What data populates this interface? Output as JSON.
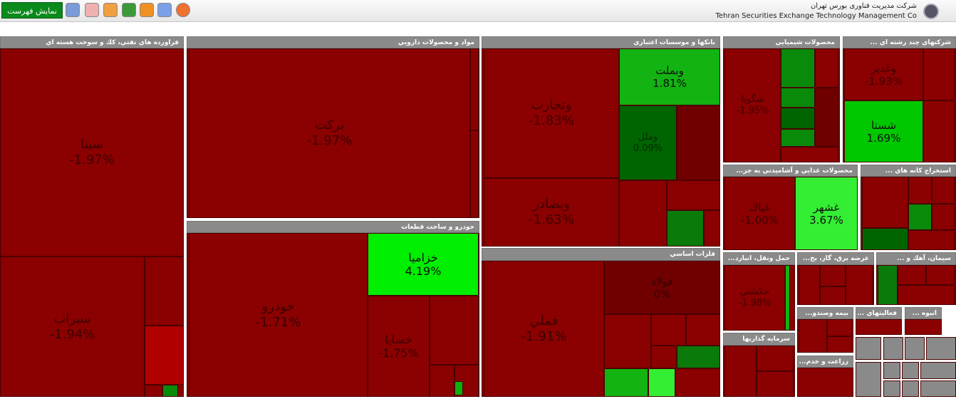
{
  "header": {
    "button": "نمايش فهرست",
    "company_fa": "شرکت مديريت فناوری بورس تهران",
    "company_en": "Tehran Securities Exchange Technology Management Co"
  },
  "sectors": [
    {
      "title": "فراورده هاي نفتي، كك و سوخت هسته اي",
      "tiles": [
        {
          "name": "سينا",
          "change": "-1.97%"
        },
        {
          "name": "سبراب",
          "change": "-1.94%"
        }
      ]
    },
    {
      "title": "مواد و محصولات دارويي",
      "tiles": [
        {
          "name": "بركت",
          "change": "-1.97%"
        }
      ]
    },
    {
      "title": "خودرو و ساخت قطعات",
      "tiles": [
        {
          "name": "خودرو",
          "change": "-1.71%"
        },
        {
          "name": "خزاميا",
          "change": "4.19%"
        },
        {
          "name": "خساپا",
          "change": "-1.75%"
        }
      ]
    },
    {
      "title": "بانكها و موسسات اعتباري",
      "tiles": [
        {
          "name": "وتجارت",
          "change": "-1.83%"
        },
        {
          "name": "وبملت",
          "change": "1.81%"
        },
        {
          "name": "وملل",
          "change": "0.09%"
        },
        {
          "name": "وبصادر",
          "change": "-1.63%"
        }
      ]
    },
    {
      "title": "فلزات اساسي",
      "tiles": [
        {
          "name": "فملي",
          "change": "-1.91%"
        },
        {
          "name": "فولاد",
          "change": "0%"
        }
      ]
    },
    {
      "title": "محصولات شيميايي",
      "tiles": [
        {
          "name": "شگويا",
          "change": "-1.95%"
        }
      ]
    },
    {
      "title": "شركتهاي چند رشته اي ...",
      "tiles": [
        {
          "name": "وغدير",
          "change": "-1.93%"
        },
        {
          "name": "شستا",
          "change": "1.69%"
        }
      ]
    },
    {
      "title": "محصولات غذايي و آشاميدني به جز...",
      "tiles": [
        {
          "name": "غپاك",
          "change": "-1.00%"
        },
        {
          "name": "غشهر",
          "change": "3.67%"
        }
      ]
    },
    {
      "title": "استخراج كانه هاي ...",
      "tiles": []
    },
    {
      "title": "حمل ونقل، انبارد...",
      "tiles": [
        {
          "name": "حكشتي",
          "change": "-1.98%"
        }
      ]
    },
    {
      "title": "عرضه برق، گاز، بخ...",
      "tiles": []
    },
    {
      "title": "سيمان، آهك و ...",
      "tiles": []
    },
    {
      "title": "بيمه وصندو...",
      "tiles": []
    },
    {
      "title": "فعاليتهاي ...",
      "tiles": []
    },
    {
      "title": "انبوه ...",
      "tiles": []
    },
    {
      "title": "سرمايه گذاريها",
      "tiles": []
    },
    {
      "title": "زراعت و خدم...",
      "tiles": []
    }
  ]
}
